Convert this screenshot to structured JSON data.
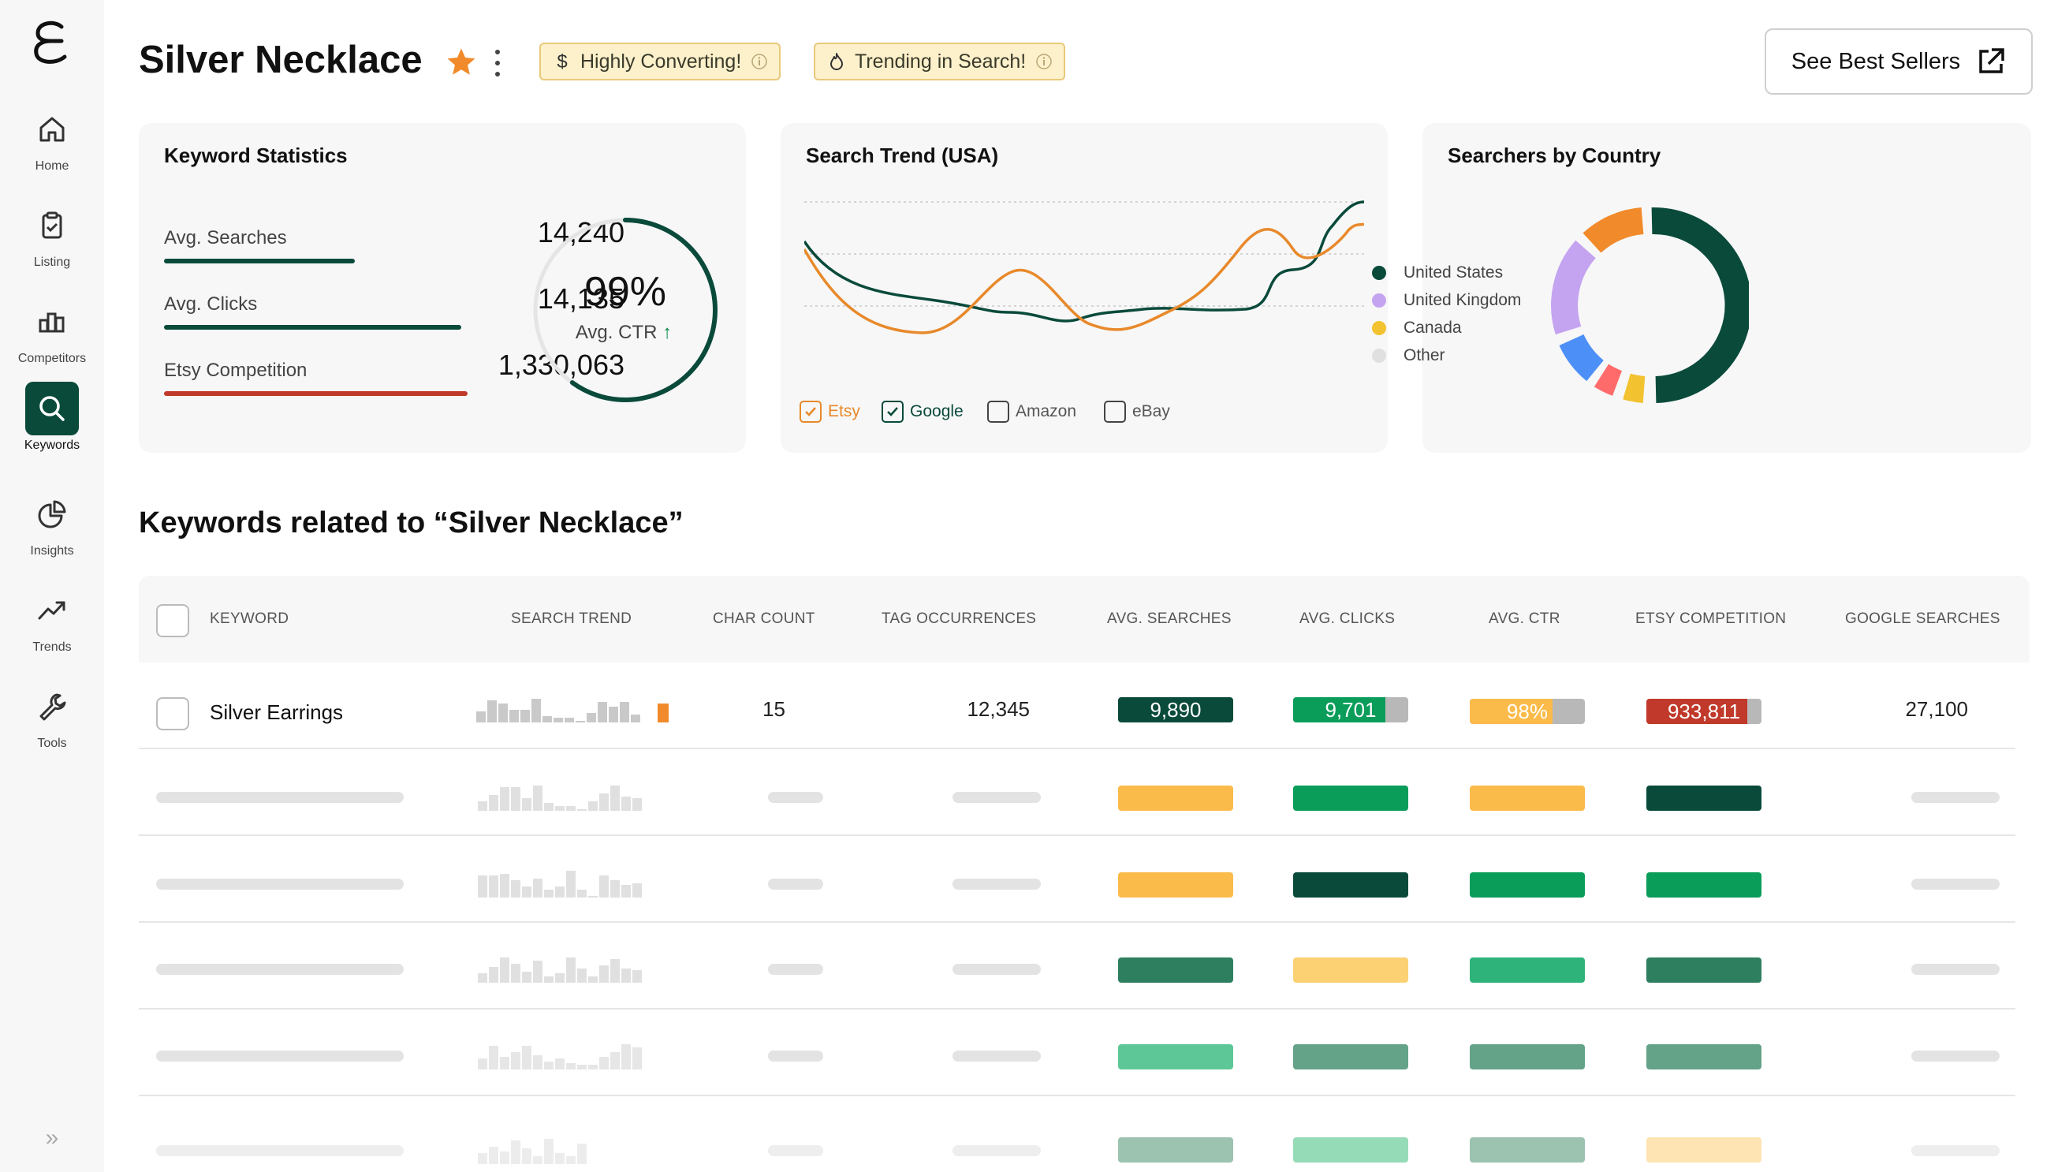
{
  "sidebar": {
    "items": [
      {
        "label": "Home",
        "icon": "home-icon"
      },
      {
        "label": "Listing",
        "icon": "clipboard-icon"
      },
      {
        "label": "Competitors",
        "icon": "bar-chart-icon"
      },
      {
        "label": "Keywords",
        "icon": "search-icon",
        "active": true
      },
      {
        "label": "Insights",
        "icon": "pie-chart-icon"
      },
      {
        "label": "Trends",
        "icon": "trend-up-icon"
      },
      {
        "label": "Tools",
        "icon": "wrench-icon"
      }
    ]
  },
  "header": {
    "title": "Silver Necklace",
    "badges": [
      {
        "label": "Highly Converting!",
        "icon": "dollar-icon"
      },
      {
        "label": "Trending in Search!",
        "icon": "flame-icon"
      }
    ],
    "best_sellers_label": "See Best Sellers"
  },
  "keyword_stats": {
    "title": "Keyword Statistics",
    "stats": [
      {
        "label": "Avg. Searches",
        "value": "14,240",
        "fill": 0.59,
        "color": "#0a4a3b"
      },
      {
        "label": "Avg. Clicks",
        "value": "14,135",
        "fill": 0.92,
        "color": "#0a4a3b"
      },
      {
        "label": "Etsy Competition",
        "value": "1,330,063",
        "fill": 0.94,
        "color": "#c0392b"
      }
    ],
    "ctr_value": "99%",
    "ctr_label": "Avg. CTR",
    "ctr_fraction": 0.6
  },
  "search_trend": {
    "title": "Search Trend (USA)",
    "legend": [
      {
        "label": "Etsy",
        "checked": true,
        "color": "#e8892b"
      },
      {
        "label": "Google",
        "checked": true,
        "color": "#0a4a3b"
      },
      {
        "label": "Amazon",
        "checked": false,
        "color": "#555555"
      },
      {
        "label": "eBay",
        "checked": false,
        "color": "#555555"
      }
    ]
  },
  "country": {
    "title": "Searchers by Country",
    "items": [
      {
        "label": "United States",
        "color": "#0a4a3b"
      },
      {
        "label": "United Kingdom",
        "color": "#c4a3f0"
      },
      {
        "label": "Canada",
        "color": "#f2c230"
      },
      {
        "label": "Other",
        "color": "#e0e0e0"
      }
    ]
  },
  "related": {
    "title": "Keywords related to “Silver Necklace”",
    "columns": [
      "KEYWORD",
      "SEARCH TREND",
      "CHAR COUNT",
      "TAG OCCURRENCES",
      "AVG. SEARCHES",
      "AVG. CLICKS",
      "AVG. CTR",
      "ETSY COMPETITION",
      "GOOGLE SEARCHES"
    ],
    "row": {
      "keyword": "Silver Earrings",
      "char_count": "15",
      "tag_occurrences": "12,345",
      "avg_searches": "9,890",
      "avg_clicks": "9,701",
      "avg_ctr": "98%",
      "etsy_competition": "933,811",
      "google_searches": "27,100"
    }
  }
}
